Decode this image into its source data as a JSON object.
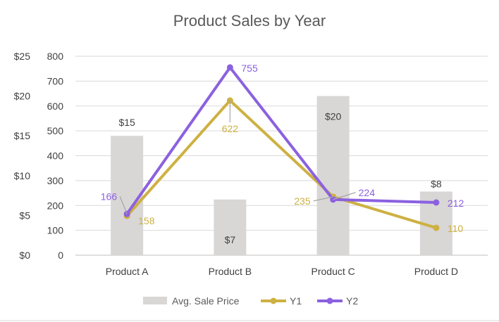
{
  "chart_data": {
    "type": "bar",
    "title": "Product Sales by Year",
    "categories": [
      "Product A",
      "Product B",
      "Product C",
      "Product D"
    ],
    "series": [
      {
        "name": "Avg. Sale Price",
        "kind": "bar",
        "axis": "secondary",
        "values": [
          15,
          7,
          20,
          8
        ],
        "data_labels": [
          "$15",
          "$7",
          "$20",
          "$8"
        ],
        "color": "#d9d6d6"
      },
      {
        "name": "Y1",
        "kind": "line",
        "axis": "primary",
        "values": [
          158,
          622,
          235,
          110
        ],
        "color": "#cdb142"
      },
      {
        "name": "Y2",
        "kind": "line",
        "axis": "primary",
        "values": [
          166,
          755,
          224,
          212
        ],
        "color": "#8b61e0"
      }
    ],
    "primary_axis": {
      "range": [
        0,
        800
      ],
      "ticks": [
        "0",
        "100",
        "200",
        "300",
        "400",
        "500",
        "600",
        "700",
        "800"
      ]
    },
    "secondary_axis": {
      "range": [
        0,
        25
      ],
      "ticks": [
        "$0",
        "$5",
        "$10",
        "$15",
        "$20",
        "$25"
      ]
    },
    "grid": true,
    "legend_position": "bottom"
  }
}
